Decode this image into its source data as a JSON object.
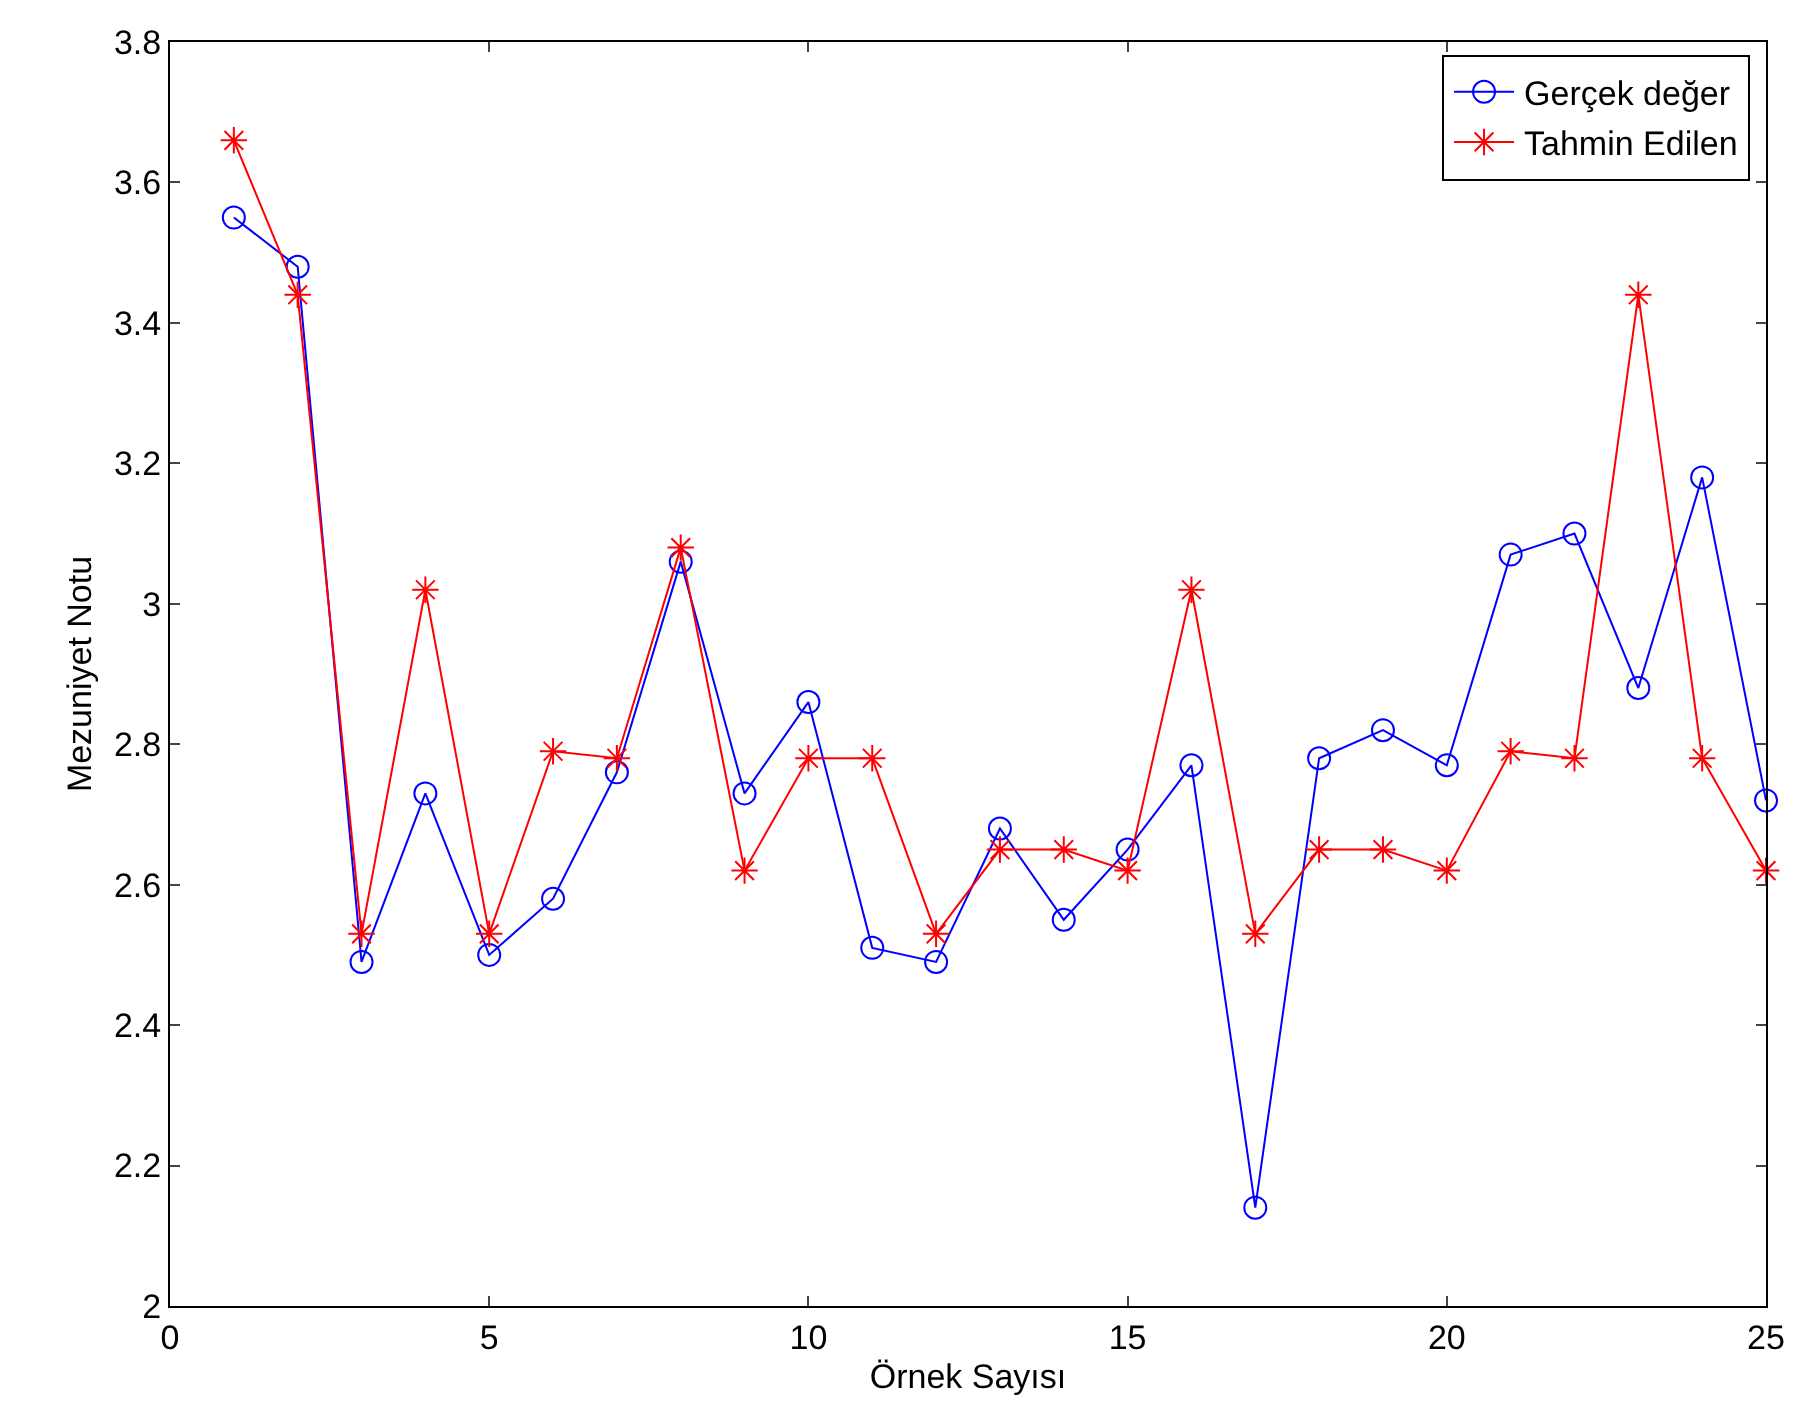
{
  "chart_data": {
    "type": "line",
    "xlabel": "Örnek Sayısı",
    "ylabel": "Mezuniyet Notu",
    "x": [
      1,
      2,
      3,
      4,
      5,
      6,
      7,
      8,
      9,
      10,
      11,
      12,
      13,
      14,
      15,
      16,
      17,
      18,
      19,
      20,
      21,
      22,
      23,
      24,
      25
    ],
    "series": [
      {
        "name": "Gerçek değer",
        "color": "#0000ff",
        "marker": "circle",
        "values": [
          3.55,
          3.48,
          2.49,
          2.73,
          2.5,
          2.58,
          2.76,
          3.06,
          2.73,
          2.86,
          2.51,
          2.49,
          2.68,
          2.55,
          2.65,
          2.77,
          2.14,
          2.78,
          2.82,
          2.77,
          3.07,
          3.1,
          2.88,
          3.18,
          2.72
        ]
      },
      {
        "name": "Tahmin Edilen",
        "color": "#ff0000",
        "marker": "cross",
        "values": [
          3.66,
          3.44,
          2.53,
          3.02,
          2.53,
          2.79,
          2.78,
          3.08,
          2.62,
          2.78,
          2.78,
          2.53,
          2.65,
          2.65,
          2.62,
          3.02,
          2.53,
          2.65,
          2.65,
          2.62,
          2.79,
          2.78,
          3.44,
          2.78,
          2.62
        ]
      }
    ],
    "xlim": [
      0,
      25
    ],
    "xticks": [
      0,
      5,
      10,
      15,
      20,
      25
    ],
    "ylim": [
      2,
      3.8
    ],
    "yticks": [
      2,
      2.2,
      2.4,
      2.6,
      2.8,
      3,
      3.2,
      3.4,
      3.6,
      3.8
    ],
    "legend": "top right",
    "line_style": "solid"
  }
}
